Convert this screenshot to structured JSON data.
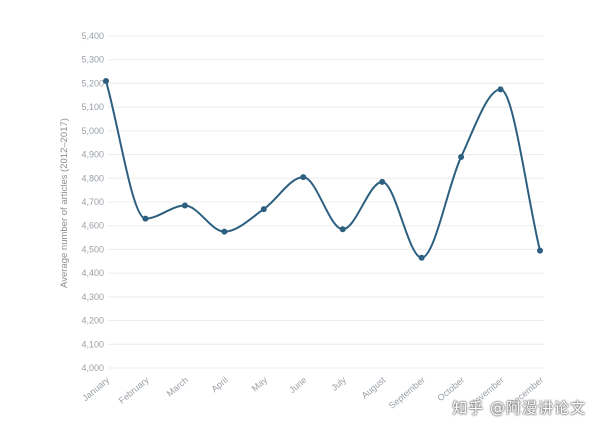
{
  "chart_data": {
    "type": "line",
    "title": "",
    "xlabel": "",
    "ylabel": "Average number of articles (2012–2017)",
    "categories": [
      "January",
      "February",
      "March",
      "April",
      "May",
      "June",
      "July",
      "August",
      "September",
      "October",
      "November",
      "December"
    ],
    "values": [
      5210,
      4630,
      4685,
      4575,
      4670,
      4805,
      4585,
      4785,
      4465,
      4890,
      5175,
      4495
    ],
    "ylim": [
      4000,
      5400
    ],
    "yticks": [
      4000,
      4100,
      4200,
      4300,
      4400,
      4500,
      4600,
      4700,
      4800,
      4900,
      5000,
      5100,
      5200,
      5300,
      5400
    ],
    "ytick_labels": [
      "4,000",
      "4,100",
      "4,200",
      "4,300",
      "4,400",
      "4,500",
      "4,600",
      "4,700",
      "4,800",
      "4,900",
      "5,000",
      "5,100",
      "5,200",
      "5,300",
      "5,400"
    ],
    "grid": true,
    "line_color": "#2c5f80",
    "grid_color": "#ececec"
  },
  "watermark": {
    "text": "知乎 @阿漫讲论文"
  }
}
